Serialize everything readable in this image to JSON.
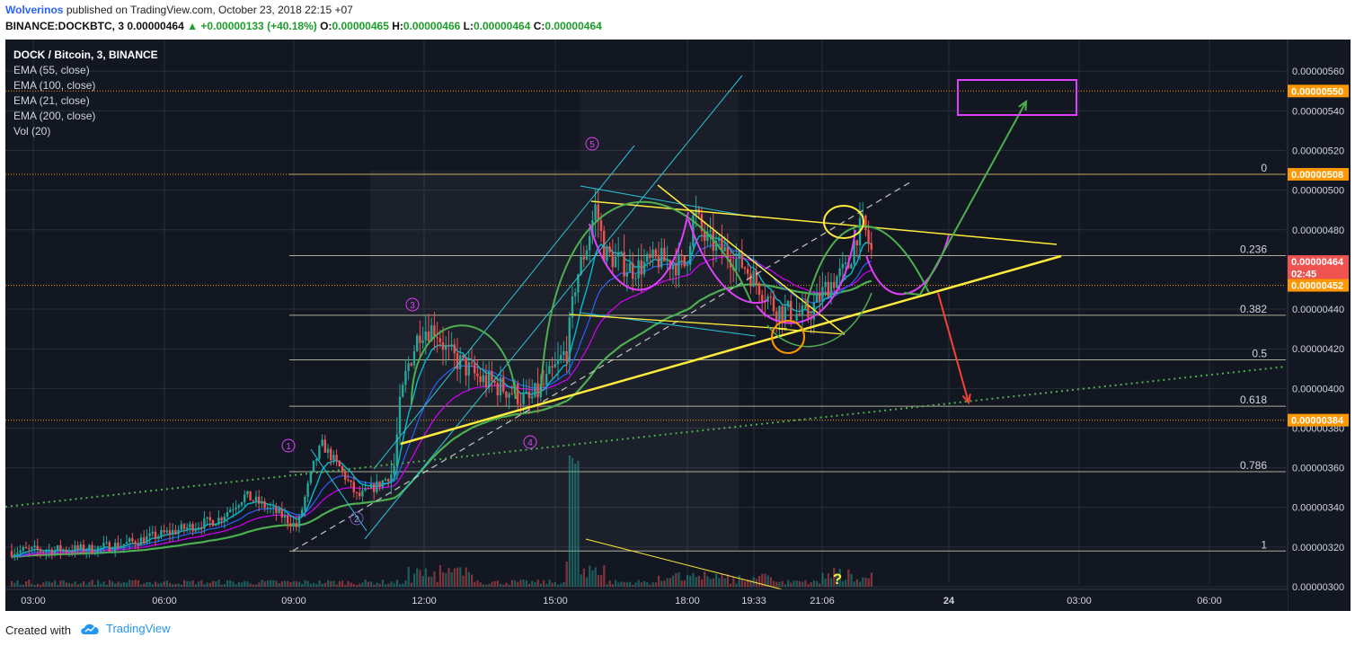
{
  "header": {
    "author": "Wolverinos",
    "published": "published on TradingView.com, October 23, 2018 22:15 +07",
    "symbol_line_prefix": "BINANCE:DOCKBTC, 3 ",
    "last": "0.00000464",
    "change": "+0.00000133 (+40.18%)",
    "ohlc": [
      {
        "k": "O:",
        "v": "0.00000465"
      },
      {
        "k": "H:",
        "v": "0.00000466"
      },
      {
        "k": "L:",
        "v": "0.00000464"
      },
      {
        "k": "C:",
        "v": "0.00000464"
      }
    ]
  },
  "legend": {
    "title": "DOCK / Bitcoin, 3, BINANCE",
    "items": [
      "EMA (55, close)",
      "EMA (100, close)",
      "EMA (21, close)",
      "EMA (200, close)",
      "Vol (20)"
    ]
  },
  "footer": {
    "created": "Created with",
    "brand": "TradingView"
  },
  "chart_data": {
    "type": "candlestick",
    "symbol": "DOCK / Bitcoin",
    "interval": "3",
    "exchange": "BINANCE",
    "y_axis_ticks": [
      "0.00000560",
      "0.00000540",
      "0.00000520",
      "0.00000500",
      "0.00000480",
      "0.00000440",
      "0.00000420",
      "0.00000400",
      "0.00000380",
      "0.00000360",
      "0.00000340",
      "0.00000320",
      "0.00000300"
    ],
    "ylim": [
      3e-06,
      5.66e-06
    ],
    "x_axis_ticks": [
      "03:00",
      "06:00",
      "09:00",
      "12:00",
      "15:00",
      "18:00",
      "19:33",
      "21:06",
      "24",
      "03:00",
      "06:00"
    ],
    "price_labels": [
      {
        "text": "0.00000550",
        "value": 5.5e-06,
        "color": "#ff9800"
      },
      {
        "text": "0.00000508",
        "value": 5.08e-06,
        "color": "#ff9800"
      },
      {
        "text": "0.00000464",
        "value": 4.64e-06,
        "color": "#ef5350"
      },
      {
        "text": "02:45",
        "value": 4.58e-06,
        "color": "#ef5350"
      },
      {
        "text": "0.00000452",
        "value": 4.52e-06,
        "color": "#ff9800"
      },
      {
        "text": "0.00000384",
        "value": 3.84e-06,
        "color": "#ff9800"
      }
    ],
    "fib_levels": [
      {
        "label": "0",
        "value": 5.08e-06
      },
      {
        "label": "0.236",
        "value": 4.67e-06
      },
      {
        "label": "0.382",
        "value": 4.369e-06
      },
      {
        "label": "0.5",
        "value": 4.144e-06
      },
      {
        "label": "0.618",
        "value": 3.91e-06
      },
      {
        "label": "0.786",
        "value": 3.58e-06
      },
      {
        "label": "1",
        "value": 3.18e-06
      }
    ],
    "wave_labels": [
      "1",
      "2",
      "3",
      "4",
      "5"
    ],
    "annotation": "?",
    "colors": {
      "background": "#131722",
      "up": "#26a69a",
      "down": "#ef5350",
      "ema_fast": "#00bcd4",
      "ema_mid": "#2962ff",
      "ema_slow": "#d500f9",
      "ema_200": "#4caf50",
      "trend": "#ffeb3b"
    }
  }
}
